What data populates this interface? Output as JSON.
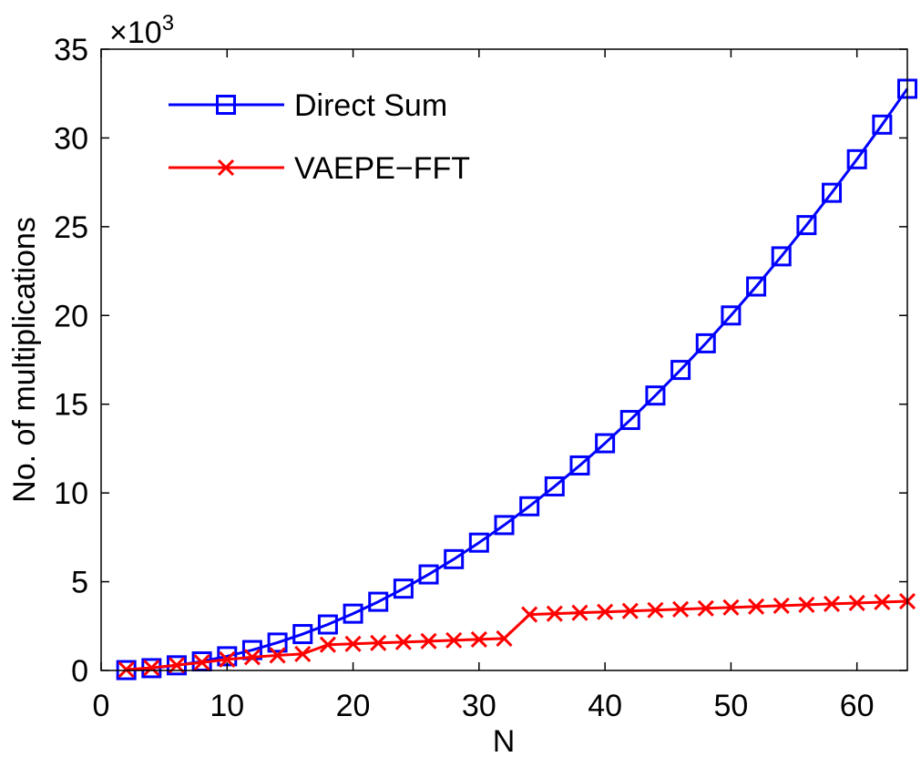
{
  "chart_data": {
    "type": "line",
    "xlabel": "N",
    "ylabel": "No. of multiplications",
    "y_multiplier_base": "×10",
    "y_multiplier_exp": "3",
    "xlim": [
      0,
      64
    ],
    "ylim": [
      0,
      35
    ],
    "xticks": [
      0,
      10,
      20,
      30,
      40,
      50,
      60
    ],
    "yticks": [
      0,
      5,
      10,
      15,
      20,
      25,
      30,
      35
    ],
    "grid": false,
    "legend_position": "top-left",
    "x": [
      2,
      4,
      6,
      8,
      10,
      12,
      14,
      16,
      18,
      20,
      22,
      24,
      26,
      28,
      30,
      32,
      34,
      36,
      38,
      40,
      42,
      44,
      46,
      48,
      50,
      52,
      54,
      56,
      58,
      60,
      62,
      64
    ],
    "series": [
      {
        "name": "Direct Sum",
        "color": "#0000ff",
        "marker": "square",
        "values": [
          0.02,
          0.13,
          0.29,
          0.51,
          0.8,
          1.15,
          1.57,
          2.05,
          2.59,
          3.2,
          3.87,
          4.61,
          5.41,
          6.27,
          7.2,
          8.19,
          9.25,
          10.37,
          11.55,
          12.8,
          14.11,
          15.49,
          16.93,
          18.43,
          20.0,
          21.63,
          23.33,
          25.09,
          26.91,
          28.8,
          30.75,
          32.77
        ]
      },
      {
        "name": "VAEPE−FFT",
        "color": "#ff0000",
        "marker": "x",
        "values": [
          0.05,
          0.15,
          0.3,
          0.45,
          0.62,
          0.75,
          0.85,
          0.93,
          1.45,
          1.5,
          1.55,
          1.6,
          1.65,
          1.7,
          1.75,
          1.8,
          3.15,
          3.2,
          3.25,
          3.3,
          3.35,
          3.4,
          3.45,
          3.5,
          3.55,
          3.6,
          3.65,
          3.7,
          3.75,
          3.8,
          3.85,
          3.9
        ]
      }
    ]
  }
}
